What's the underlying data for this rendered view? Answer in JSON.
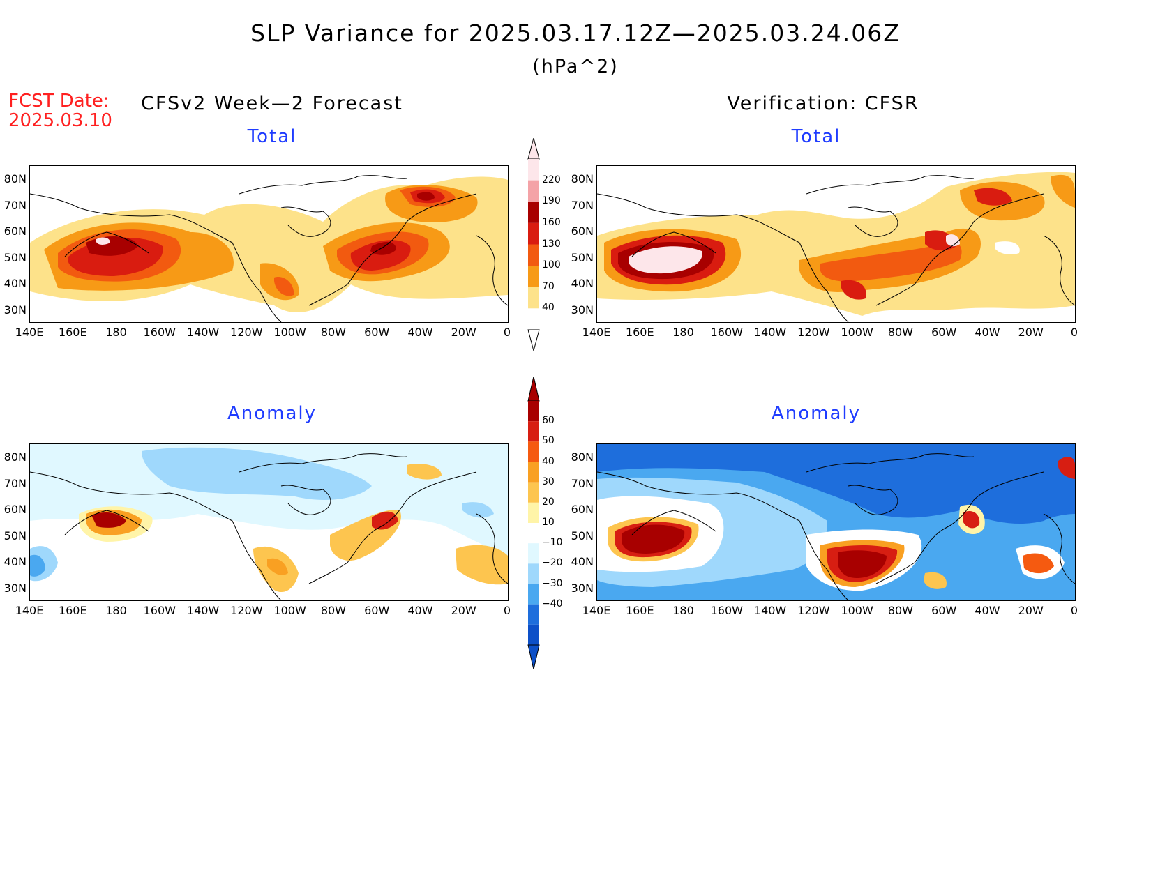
{
  "header": {
    "title": "SLP Variance for 2025.03.17.12Z—2025.03.24.06Z",
    "units": "(hPa^2)",
    "fcst_label": "FCST Date:",
    "fcst_date": "2025.03.10"
  },
  "columns": {
    "left": "CFSv2 Week—2 Forecast",
    "right": "Verification: CFSR"
  },
  "rows": {
    "top": "Total",
    "bottom": "Anomaly"
  },
  "axes": {
    "lat_labels": [
      "80N",
      "70N",
      "60N",
      "50N",
      "40N",
      "30N"
    ],
    "lon_labels": [
      "140E",
      "160E",
      "180",
      "160W",
      "140W",
      "120W",
      "100W",
      "80W",
      "60W",
      "40W",
      "20W",
      "0"
    ]
  },
  "colorbars": {
    "total": {
      "levels": [
        "220",
        "190",
        "160",
        "130",
        "100",
        "70",
        "40"
      ],
      "colors": [
        "#fde6ea",
        "#f4a3a7",
        "#a80000",
        "#d91c10",
        "#f25a10",
        "#f79a16",
        "#fde28a",
        "#ffffff"
      ]
    },
    "anomaly": {
      "levels": [
        "60",
        "50",
        "40",
        "30",
        "20",
        "10",
        "−10",
        "−20",
        "−30",
        "−40"
      ],
      "colors": [
        "#a80000",
        "#d71e12",
        "#f55a10",
        "#f9a022",
        "#fdc54f",
        "#fff4a8",
        "#ffffff",
        "#e0f8ff",
        "#9fd8fc",
        "#4aa8f0",
        "#1e6edc",
        "#0d50c8"
      ]
    }
  },
  "colors": {
    "title_blue": "#1f3cff",
    "fcst_red": "#ff2020"
  }
}
